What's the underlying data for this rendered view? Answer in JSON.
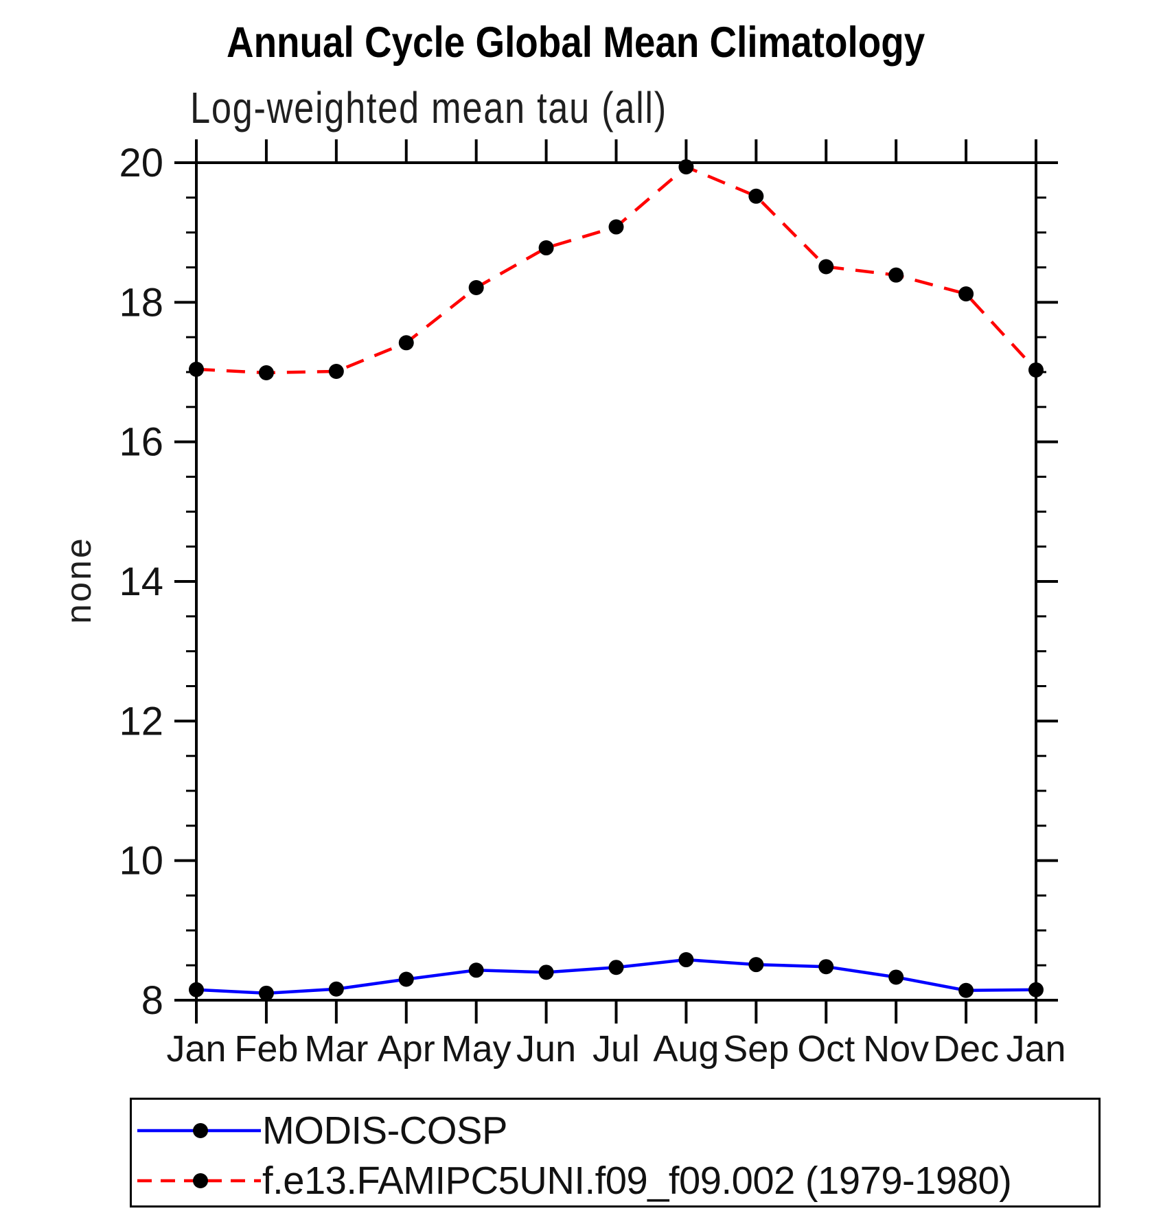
{
  "header": {
    "title": "Annual Cycle Global Mean Climatology",
    "subtitle": "Log-weighted mean tau (all)"
  },
  "chart_data": {
    "type": "line",
    "title": "Annual Cycle Global Mean Climatology",
    "subtitle": "Log-weighted mean tau (all)",
    "xlabel": "",
    "ylabel": "none",
    "categories": [
      "Jan",
      "Feb",
      "Mar",
      "Apr",
      "May",
      "Jun",
      "Jul",
      "Aug",
      "Sep",
      "Oct",
      "Nov",
      "Dec",
      "Jan"
    ],
    "ylim": [
      8,
      20
    ],
    "y_major_ticks": [
      8,
      10,
      12,
      14,
      16,
      18,
      20
    ],
    "y_minor_step": 0.5,
    "grid": false,
    "legend_position": "bottom-left-box",
    "axis_color": "#000000",
    "marker_color": "#000000",
    "series": [
      {
        "name": "MODIS-COSP",
        "color": "#0000ff",
        "line_style": "solid",
        "marker": "filled-circle",
        "values": [
          8.15,
          8.1,
          8.16,
          8.3,
          8.43,
          8.4,
          8.47,
          8.58,
          8.51,
          8.48,
          8.33,
          8.14,
          8.15
        ]
      },
      {
        "name": "f.e13.FAMIPC5UNI.f09_f09.002 (1979-1980)",
        "color": "#ff0000",
        "line_style": "dashed",
        "marker": "filled-circle",
        "values": [
          17.04,
          16.99,
          17.01,
          17.42,
          18.21,
          18.78,
          19.08,
          19.94,
          19.52,
          18.51,
          18.39,
          18.12,
          17.03
        ]
      }
    ]
  },
  "legend": {
    "entries": [
      {
        "label": "MODIS-COSP"
      },
      {
        "label": "f.e13.FAMIPC5UNI.f09_f09.002 (1979-1980)"
      }
    ]
  }
}
